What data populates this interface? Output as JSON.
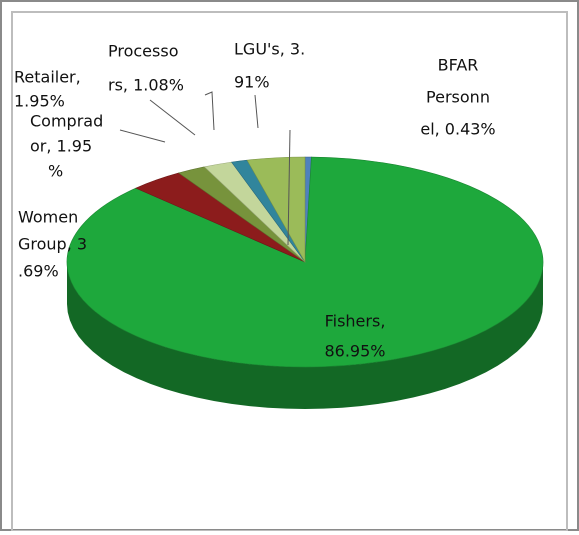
{
  "chart_data": {
    "type": "pie3d",
    "values": [
      0.43,
      86.95,
      3.69,
      1.95,
      1.95,
      1.08,
      3.91
    ],
    "value_labels": [
      [
        "BFAR",
        "Personn",
        "el, 0.43%"
      ],
      [
        "Fishers,",
        "86.95%"
      ],
      [
        "Women",
        "Group, 3",
        ".69%"
      ],
      [
        "Comprad",
        "or, 1.95",
        "%"
      ],
      [
        "Retailer,",
        "1.95%"
      ],
      [
        "Processo",
        "rs, 1.08%"
      ],
      [
        "LGU's, 3.",
        "91%"
      ]
    ],
    "colors": [
      "#4f81bd",
      "#1ea83c",
      "#8c1c1c",
      "#77933c",
      "#c3d69b",
      "#31859c",
      "#9bbb59"
    ]
  }
}
